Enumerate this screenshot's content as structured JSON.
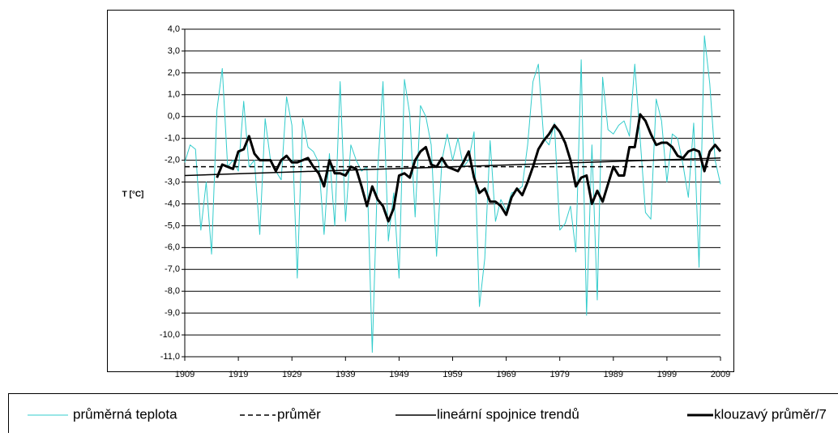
{
  "chart_data": {
    "type": "line",
    "y_label": "T [°C]",
    "x": [
      1909,
      1910,
      1911,
      1912,
      1913,
      1914,
      1915,
      1916,
      1917,
      1918,
      1919,
      1920,
      1921,
      1922,
      1923,
      1924,
      1925,
      1926,
      1927,
      1928,
      1929,
      1930,
      1931,
      1932,
      1933,
      1934,
      1935,
      1936,
      1937,
      1938,
      1939,
      1940,
      1941,
      1942,
      1943,
      1944,
      1945,
      1946,
      1947,
      1948,
      1949,
      1950,
      1951,
      1952,
      1953,
      1954,
      1955,
      1956,
      1957,
      1958,
      1959,
      1960,
      1961,
      1962,
      1963,
      1964,
      1965,
      1966,
      1967,
      1968,
      1969,
      1970,
      1971,
      1972,
      1973,
      1974,
      1975,
      1976,
      1977,
      1978,
      1979,
      1980,
      1981,
      1982,
      1983,
      1984,
      1985,
      1986,
      1987,
      1988,
      1989,
      1990,
      1991,
      1992,
      1993,
      1994,
      1995,
      1996,
      1997,
      1998,
      1999,
      2000,
      2001,
      2002,
      2003,
      2004,
      2005,
      2006,
      2007,
      2008,
      2009
    ],
    "series": [
      {
        "name": "průměrná teplota",
        "color": "#33cccc",
        "width": 1,
        "values": [
          -2.1,
          -1.3,
          -1.5,
          -5.2,
          -3.0,
          -6.3,
          0.3,
          2.2,
          -2.3,
          -2.0,
          -2.5,
          0.7,
          -2.3,
          -2.0,
          -5.4,
          -0.1,
          -2.0,
          -2.5,
          -2.9,
          0.9,
          -0.4,
          -7.4,
          -0.1,
          -1.4,
          -1.6,
          -2.1,
          -5.4,
          -1.7,
          -5.0,
          1.6,
          -4.8,
          -1.3,
          -2.0,
          -2.5,
          -2.3,
          -10.8,
          -2.5,
          1.6,
          -5.7,
          -3.5,
          -7.4,
          1.7,
          0.1,
          -4.6,
          0.5,
          0.0,
          -1.3,
          -6.4,
          -2.0,
          -0.8,
          -2.0,
          -1.0,
          -2.3,
          -2.0,
          -0.7,
          -8.7,
          -6.5,
          -1.1,
          -4.8,
          -3.8,
          -4.3,
          -3.5,
          -3.4,
          -3.2,
          -1.3,
          1.6,
          2.4,
          -1.0,
          -1.3,
          -0.3,
          -5.2,
          -4.9,
          -4.1,
          -6.2,
          2.6,
          -9.1,
          -1.3,
          -8.4,
          1.8,
          -0.6,
          -0.8,
          -0.4,
          -0.2,
          -0.9,
          2.4,
          -1.0,
          -4.4,
          -4.7,
          0.8,
          -0.2,
          -3.0,
          -0.8,
          -1.0,
          -2.2,
          -3.7,
          -0.3,
          -6.9,
          3.7,
          1.5,
          -2.0,
          -3.1
        ]
      },
      {
        "name": "průměr",
        "color": "#000000",
        "width": 1.5,
        "dashed": true,
        "value": -2.3
      },
      {
        "name": "lineární spojnice trendů",
        "color": "#000000",
        "width": 1.5,
        "x": [
          1909,
          2009
        ],
        "values": [
          -2.7,
          -1.9
        ]
      },
      {
        "name": "klouzavý průměr/7",
        "color": "#000000",
        "width": 3,
        "values": [
          null,
          null,
          null,
          null,
          null,
          null,
          -2.8,
          -2.2,
          -2.3,
          -2.4,
          -1.6,
          -1.5,
          -0.9,
          -1.7,
          -2.0,
          -2.0,
          -2.0,
          -2.5,
          -2.0,
          -1.8,
          -2.1,
          -2.1,
          -2.0,
          -1.9,
          -2.3,
          -2.6,
          -3.2,
          -2.0,
          -2.6,
          -2.6,
          -2.7,
          -2.3,
          -2.4,
          -3.2,
          -4.1,
          -3.2,
          -3.8,
          -4.1,
          -4.8,
          -4.2,
          -2.7,
          -2.6,
          -2.8,
          -2.0,
          -1.6,
          -1.4,
          -2.2,
          -2.3,
          -1.9,
          -2.3,
          -2.4,
          -2.5,
          -2.1,
          -1.6,
          -2.8,
          -3.5,
          -3.3,
          -3.9,
          -3.9,
          -4.1,
          -4.5,
          -3.7,
          -3.3,
          -3.6,
          -3.0,
          -2.3,
          -1.5,
          -1.1,
          -0.8,
          -0.4,
          -0.7,
          -1.2,
          -2.0,
          -3.2,
          -2.8,
          -2.7,
          -4.0,
          -3.4,
          -3.9,
          -3.1,
          -2.3,
          -2.7,
          -2.7,
          -1.4,
          -1.4,
          0.1,
          -0.2,
          -0.8,
          -1.3,
          -1.2,
          -1.2,
          -1.4,
          -1.8,
          -1.9,
          -1.6,
          -1.5,
          -1.6,
          -2.5,
          -1.6,
          -1.3,
          -1.6
        ]
      }
    ],
    "xlim": [
      1909,
      2009
    ],
    "xticks": [
      1909,
      1919,
      1929,
      1939,
      1949,
      1959,
      1969,
      1979,
      1989,
      1999,
      2009
    ],
    "ylim": [
      -11,
      4
    ],
    "yticks": [
      {
        "value": 4,
        "label": "4,0"
      },
      {
        "value": 3,
        "label": "3,0"
      },
      {
        "value": 2,
        "label": "2,0"
      },
      {
        "value": 1,
        "label": "1,0"
      },
      {
        "value": 0,
        "label": "0,0"
      },
      {
        "value": -1,
        "label": "-1,0"
      },
      {
        "value": -2,
        "label": "-2,0"
      },
      {
        "value": -3,
        "label": "-3,0"
      },
      {
        "value": -4,
        "label": "-4,0"
      },
      {
        "value": -5,
        "label": "-5,0"
      },
      {
        "value": -6,
        "label": "-6,0"
      },
      {
        "value": -7,
        "label": "-7,0"
      },
      {
        "value": -8,
        "label": "-8,0"
      },
      {
        "value": -9,
        "label": "-9,0"
      },
      {
        "value": -10,
        "label": "-10,0"
      },
      {
        "value": -11,
        "label": "-11,0"
      }
    ],
    "grid": true
  }
}
